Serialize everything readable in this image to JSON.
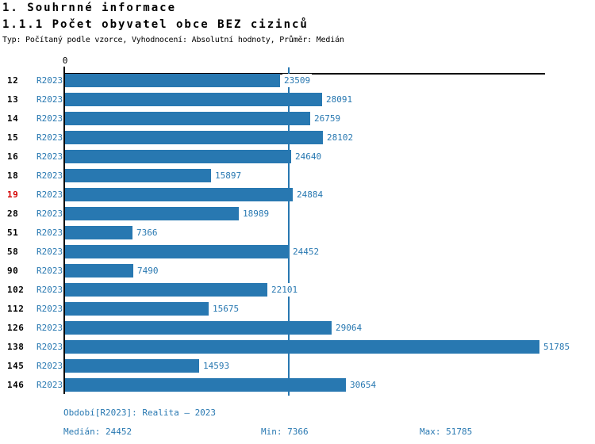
{
  "header": {
    "title": "1. Souhrnné informace",
    "subtitle": "1.1.1 Počet obyvatel obce BEZ cizinců",
    "meta": "Typ: Počítaný podle vzorce, Vyhodnocení: Absolutní hodnoty, Průměr: Medián"
  },
  "chart_data": {
    "type": "bar",
    "orientation": "horizontal",
    "title": "1.1.1 Počet obyvatel obce BEZ cizinců",
    "axis_zero_label": "0",
    "xlim": [
      0,
      51785
    ],
    "grid": false,
    "legend_position": "none",
    "series_label": "R2023",
    "bar_color": "#2878b1",
    "highlight_color": "#d40000",
    "median_line_value": 24452,
    "categories": [
      "12",
      "13",
      "14",
      "15",
      "16",
      "18",
      "19",
      "28",
      "51",
      "58",
      "90",
      "102",
      "112",
      "126",
      "138",
      "145",
      "146"
    ],
    "rows": [
      {
        "id": "12",
        "series": "R2023",
        "value": 23509,
        "highlight": false
      },
      {
        "id": "13",
        "series": "R2023",
        "value": 28091,
        "highlight": false
      },
      {
        "id": "14",
        "series": "R2023",
        "value": 26759,
        "highlight": false
      },
      {
        "id": "15",
        "series": "R2023",
        "value": 28102,
        "highlight": false
      },
      {
        "id": "16",
        "series": "R2023",
        "value": 24640,
        "highlight": false
      },
      {
        "id": "18",
        "series": "R2023",
        "value": 15897,
        "highlight": false
      },
      {
        "id": "19",
        "series": "R2023",
        "value": 24884,
        "highlight": true
      },
      {
        "id": "28",
        "series": "R2023",
        "value": 18989,
        "highlight": false
      },
      {
        "id": "51",
        "series": "R2023",
        "value": 7366,
        "highlight": false
      },
      {
        "id": "58",
        "series": "R2023",
        "value": 24452,
        "highlight": false
      },
      {
        "id": "90",
        "series": "R2023",
        "value": 7490,
        "highlight": false
      },
      {
        "id": "102",
        "series": "R2023",
        "value": 22101,
        "highlight": false
      },
      {
        "id": "112",
        "series": "R2023",
        "value": 15675,
        "highlight": false
      },
      {
        "id": "126",
        "series": "R2023",
        "value": 29064,
        "highlight": false
      },
      {
        "id": "138",
        "series": "R2023",
        "value": 51785,
        "highlight": false
      },
      {
        "id": "145",
        "series": "R2023",
        "value": 14593,
        "highlight": false
      },
      {
        "id": "146",
        "series": "R2023",
        "value": 30654,
        "highlight": false
      }
    ],
    "stats": {
      "median": 24452,
      "min": 7366,
      "max": 51785
    }
  },
  "footer": {
    "period": "Období[R2023]: Realita – 2023",
    "median": "Medián: 24452",
    "min": "Min: 7366",
    "max": "Max: 51785"
  }
}
